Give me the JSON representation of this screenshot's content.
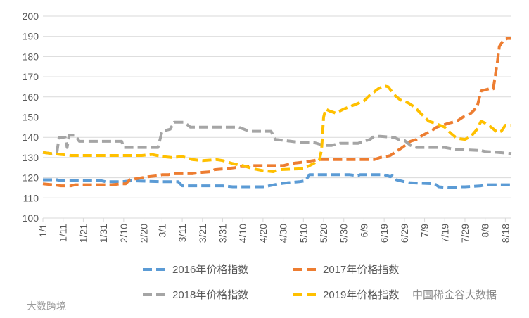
{
  "chart_data": {
    "type": "line",
    "title": "",
    "xlabel": "",
    "ylabel": "",
    "ylim": [
      100,
      200
    ],
    "y_ticks": [
      100,
      110,
      120,
      130,
      140,
      150,
      160,
      170,
      180,
      190,
      200
    ],
    "x_tick_labels": [
      "1/1",
      "1/11",
      "1/21",
      "1/31",
      "2/10",
      "2/20",
      "3/1",
      "3/11",
      "3/21",
      "3/31",
      "4/10",
      "4/20",
      "4/30",
      "5/10",
      "5/20",
      "5/30",
      "6/9",
      "6/19",
      "6/29",
      "7/9",
      "7/19",
      "7/29",
      "8/8",
      "8/18"
    ],
    "x_tick_days": [
      1,
      11,
      21,
      31,
      41,
      51,
      60,
      70,
      80,
      90,
      100,
      110,
      120,
      130,
      140,
      150,
      160,
      170,
      180,
      190,
      200,
      210,
      220,
      230
    ],
    "x_range_days": [
      1,
      233
    ],
    "grid": true,
    "legend_position": "bottom",
    "series": [
      {
        "name": "2016年价格指数",
        "color": "#5B9BD5",
        "points": [
          [
            1,
            119
          ],
          [
            8,
            119
          ],
          [
            10,
            118.5
          ],
          [
            30,
            118.5
          ],
          [
            32,
            118
          ],
          [
            40,
            118
          ],
          [
            45,
            118.5
          ],
          [
            60,
            118
          ],
          [
            68,
            118
          ],
          [
            70,
            116
          ],
          [
            90,
            116
          ],
          [
            95,
            115.5
          ],
          [
            110,
            115.5
          ],
          [
            113,
            116
          ],
          [
            118,
            117
          ],
          [
            122,
            117.5
          ],
          [
            128,
            118
          ],
          [
            131,
            118.5
          ],
          [
            133,
            121.5
          ],
          [
            153,
            121.5
          ],
          [
            157,
            121
          ],
          [
            158,
            121.5
          ],
          [
            170,
            121.5
          ],
          [
            173,
            120.5
          ],
          [
            174,
            121
          ],
          [
            176,
            119
          ],
          [
            180,
            118
          ],
          [
            183,
            117.5
          ],
          [
            195,
            117
          ],
          [
            197,
            115.5
          ],
          [
            202,
            115
          ],
          [
            208,
            115.5
          ],
          [
            210,
            115.5
          ],
          [
            218,
            116
          ],
          [
            220,
            116.5
          ],
          [
            233,
            116.5
          ]
        ]
      },
      {
        "name": "2017年价格指数",
        "color": "#ED7D31",
        "points": [
          [
            1,
            117
          ],
          [
            6,
            116.5
          ],
          [
            10,
            116
          ],
          [
            15,
            116
          ],
          [
            17,
            116.5
          ],
          [
            35,
            116.5
          ],
          [
            40,
            117
          ],
          [
            42,
            117
          ],
          [
            44,
            119
          ],
          [
            50,
            120
          ],
          [
            53,
            120.5
          ],
          [
            58,
            121
          ],
          [
            60,
            121.5
          ],
          [
            63,
            121.5
          ],
          [
            66,
            122
          ],
          [
            75,
            122
          ],
          [
            78,
            122.5
          ],
          [
            84,
            123
          ],
          [
            86,
            124
          ],
          [
            92,
            124.5
          ],
          [
            96,
            125
          ],
          [
            99,
            125.5
          ],
          [
            102,
            125.5
          ],
          [
            104,
            126
          ],
          [
            120,
            126
          ],
          [
            124,
            127
          ],
          [
            128,
            127.5
          ],
          [
            132,
            128
          ],
          [
            135,
            128.5
          ],
          [
            138,
            129
          ],
          [
            165,
            129
          ],
          [
            168,
            130
          ],
          [
            171,
            130.5
          ],
          [
            173,
            131
          ],
          [
            176,
            133
          ],
          [
            179,
            135
          ],
          [
            183,
            138
          ],
          [
            186,
            139
          ],
          [
            189,
            141
          ],
          [
            193,
            143
          ],
          [
            196,
            145
          ],
          [
            199,
            146
          ],
          [
            202,
            147
          ],
          [
            206,
            148
          ],
          [
            209,
            150
          ],
          [
            213,
            152
          ],
          [
            216,
            155
          ],
          [
            218,
            163
          ],
          [
            222,
            164
          ],
          [
            224,
            164
          ],
          [
            226,
            177
          ],
          [
            227,
            185
          ],
          [
            229,
            188
          ],
          [
            231,
            189
          ],
          [
            233,
            189
          ]
        ]
      },
      {
        "name": "2018年价格指数",
        "color": "#A5A5A5",
        "points": [
          [
            1,
            132.5
          ],
          [
            5,
            132
          ],
          [
            8,
            133
          ],
          [
            9,
            140
          ],
          [
            12,
            140
          ],
          [
            13,
            135
          ],
          [
            14,
            141
          ],
          [
            17,
            141
          ],
          [
            19,
            138
          ],
          [
            40,
            138
          ],
          [
            41,
            135
          ],
          [
            58,
            135
          ],
          [
            60,
            143
          ],
          [
            64,
            144
          ],
          [
            66,
            147.5
          ],
          [
            71,
            147.5
          ],
          [
            74,
            145
          ],
          [
            98,
            145
          ],
          [
            102,
            143.5
          ],
          [
            104,
            143
          ],
          [
            114,
            143
          ],
          [
            116,
            139
          ],
          [
            124,
            138
          ],
          [
            128,
            137.5
          ],
          [
            135,
            137.5
          ],
          [
            140,
            136
          ],
          [
            144,
            136
          ],
          [
            148,
            137
          ],
          [
            157,
            137
          ],
          [
            160,
            138
          ],
          [
            163,
            139
          ],
          [
            165,
            140.5
          ],
          [
            168,
            140.5
          ],
          [
            175,
            140
          ],
          [
            177,
            139
          ],
          [
            180,
            138.5
          ],
          [
            183,
            136
          ],
          [
            186,
            135
          ],
          [
            200,
            135
          ],
          [
            205,
            134
          ],
          [
            218,
            133.5
          ],
          [
            220,
            133
          ],
          [
            233,
            132
          ]
        ]
      },
      {
        "name": "2019年价格指数",
        "color": "#FFC000",
        "points": [
          [
            1,
            132.5
          ],
          [
            5,
            132
          ],
          [
            10,
            131.5
          ],
          [
            15,
            131
          ],
          [
            35,
            131
          ],
          [
            50,
            131
          ],
          [
            55,
            131.5
          ],
          [
            60,
            130.5
          ],
          [
            65,
            130
          ],
          [
            70,
            130.5
          ],
          [
            75,
            129
          ],
          [
            80,
            128.5
          ],
          [
            87,
            129
          ],
          [
            90,
            128.5
          ],
          [
            95,
            127
          ],
          [
            100,
            126
          ],
          [
            105,
            124.5
          ],
          [
            110,
            123.5
          ],
          [
            115,
            123
          ],
          [
            118,
            124
          ],
          [
            130,
            124.5
          ],
          [
            135,
            127
          ],
          [
            138,
            129
          ],
          [
            139,
            134
          ],
          [
            140,
            150
          ],
          [
            141,
            154
          ],
          [
            143,
            153
          ],
          [
            146,
            152
          ],
          [
            150,
            154
          ],
          [
            155,
            156
          ],
          [
            160,
            158
          ],
          [
            163,
            161
          ],
          [
            167,
            164
          ],
          [
            170,
            165.5
          ],
          [
            172,
            165
          ],
          [
            175,
            161
          ],
          [
            178,
            158.5
          ],
          [
            182,
            157
          ],
          [
            185,
            155
          ],
          [
            188,
            152
          ],
          [
            192,
            148
          ],
          [
            195,
            147
          ],
          [
            200,
            145
          ],
          [
            203,
            142
          ],
          [
            206,
            139.5
          ],
          [
            210,
            139
          ],
          [
            213,
            140.5
          ],
          [
            216,
            144
          ],
          [
            218,
            148
          ],
          [
            220,
            147
          ],
          [
            223,
            145
          ],
          [
            226,
            142.5
          ],
          [
            228,
            143
          ],
          [
            230,
            146
          ],
          [
            233,
            146
          ]
        ]
      }
    ]
  },
  "legend": {
    "items": [
      "2016年价格指数",
      "2017年价格指数",
      "2018年价格指数",
      "2019年价格指数"
    ]
  },
  "watermarks": {
    "left": "大数跨境",
    "right": "中国稀金谷大数据"
  }
}
